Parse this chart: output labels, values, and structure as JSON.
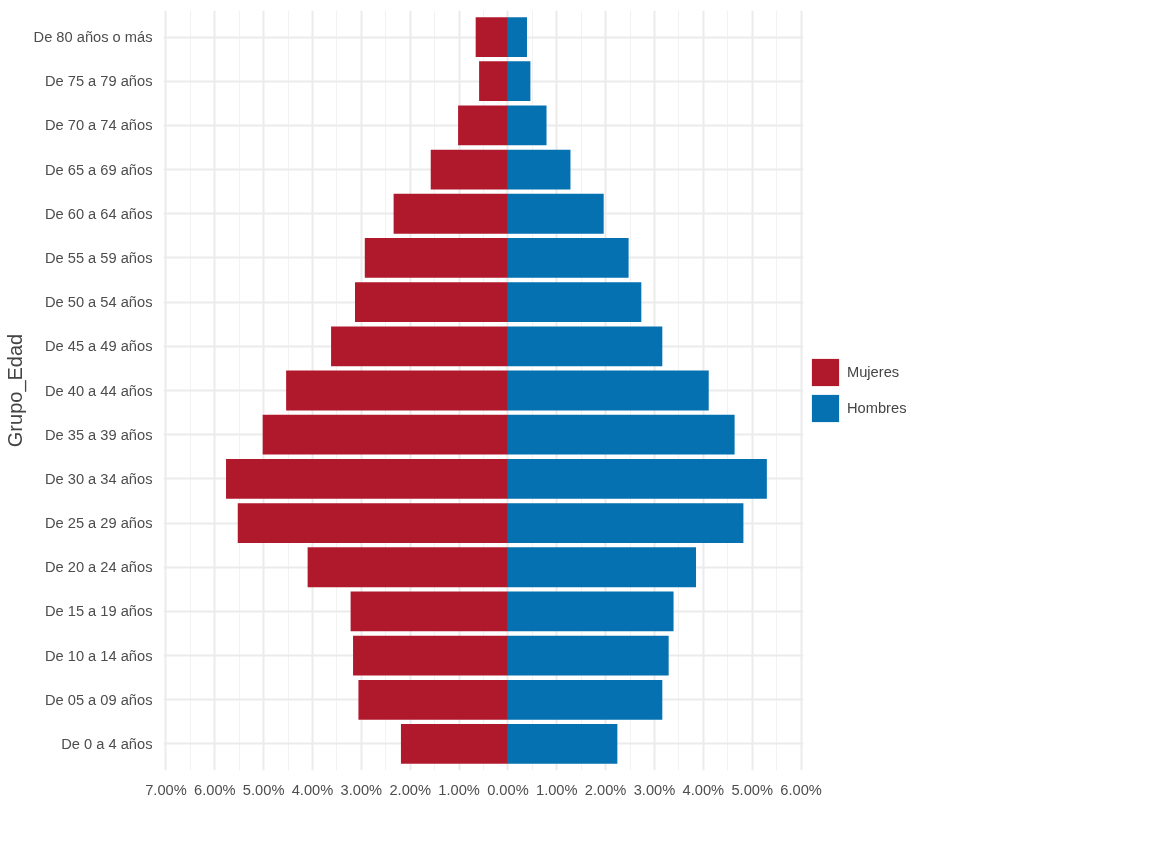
{
  "chart_data": {
    "type": "bar",
    "orientation": "horizontal",
    "ylabel": "Grupo_Edad",
    "categories": [
      "De 80 años o más",
      "De 75 a 79 años",
      "De 70 a 74 años",
      "De 65 a 69 años",
      "De 60 a 64 años",
      "De 55 a 59 años",
      "De 50 a 54 años",
      "De 45 a 49 años",
      "De 40 a 44 años",
      "De 35 a 39 años",
      "De 30 a 34 años",
      "De 25 a 29 años",
      "De 20 a 24 años",
      "De 15 a 19 años",
      "De 10 a 14 años",
      "De 05 a 09 años",
      "De 0 a 4 años"
    ],
    "series": [
      {
        "name": "Mujeres",
        "color": "#b0182c",
        "values": [
          -0.66,
          -0.59,
          -1.02,
          -1.58,
          -2.34,
          -2.93,
          -3.13,
          -3.62,
          -4.54,
          -5.02,
          -5.77,
          -5.53,
          -4.1,
          -3.22,
          -3.17,
          -3.06,
          -2.19
        ]
      },
      {
        "name": "Hombres",
        "color": "#0571b0",
        "values": [
          0.39,
          0.46,
          0.79,
          1.28,
          1.96,
          2.47,
          2.73,
          3.16,
          4.11,
          4.64,
          5.3,
          4.82,
          3.85,
          3.39,
          3.29,
          3.16,
          2.24
        ]
      }
    ],
    "xlim": [
      -7.05,
      6.05
    ],
    "xticks": [
      {
        "value": -7,
        "label": "7.00%"
      },
      {
        "value": -6,
        "label": "6.00%"
      },
      {
        "value": -5,
        "label": "5.00%"
      },
      {
        "value": -4,
        "label": "4.00%"
      },
      {
        "value": -3,
        "label": "3.00%"
      },
      {
        "value": -2,
        "label": "2.00%"
      },
      {
        "value": -1,
        "label": "1.00%"
      },
      {
        "value": 0,
        "label": "0.00%"
      },
      {
        "value": 1,
        "label": "1.00%"
      },
      {
        "value": 2,
        "label": "2.00%"
      },
      {
        "value": 3,
        "label": "3.00%"
      },
      {
        "value": 4,
        "label": "4.00%"
      },
      {
        "value": 5,
        "label": "5.00%"
      },
      {
        "value": 6,
        "label": "6.00%"
      }
    ],
    "grid": true,
    "legend": "right",
    "stacked": true
  }
}
